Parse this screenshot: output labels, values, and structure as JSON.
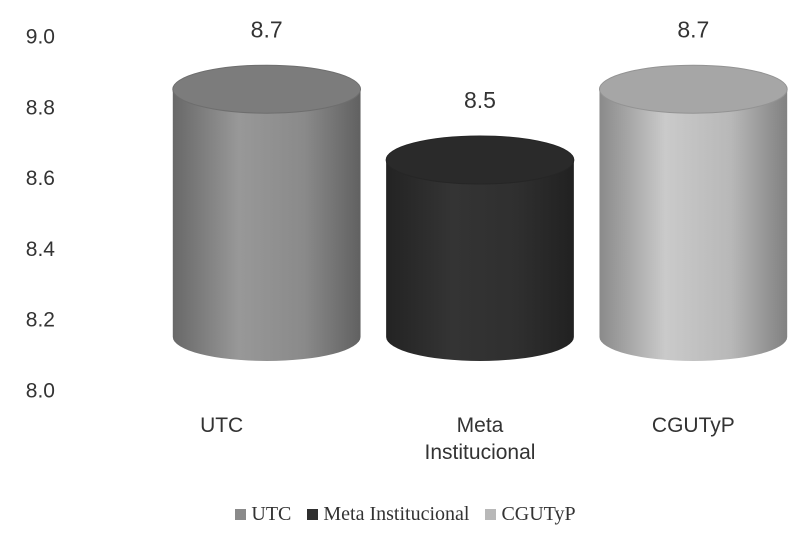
{
  "chart_data": {
    "type": "cylinder",
    "categories": [
      "UTC",
      "Meta Institucional",
      "CGUTyP"
    ],
    "values": [
      8.7,
      8.5,
      8.7
    ],
    "colors": [
      "#8a8a8a",
      "#2f2f2f",
      "#b8b8b8"
    ],
    "ylim": [
      8,
      9
    ],
    "yticks": [
      {
        "value": 8,
        "label": "8.0"
      },
      8.2,
      8.4,
      8.6,
      8.8,
      {
        "value": 9,
        "label": "9.0"
      }
    ],
    "legend": "bottom"
  }
}
